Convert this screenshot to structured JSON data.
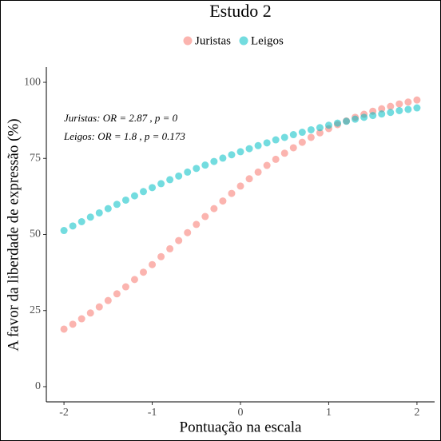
{
  "chart_data": {
    "type": "scatter",
    "title": "Estudo 2",
    "x_label": "Pontuação na escala",
    "y_label": "A favor da liberdade de expressão (%)",
    "annotations": [
      "Juristas: OR = 2.87 , p = 0",
      "Leigos: OR = 1.8 , p = 0.173"
    ],
    "legend_position": "top",
    "xlim": [
      -2.2,
      2.2
    ],
    "xticks": [
      -2,
      -1,
      0,
      1,
      2
    ],
    "ylim": [
      -5,
      105
    ],
    "yticks": [
      0,
      25,
      50,
      75,
      100
    ],
    "x": [
      -2,
      -1.9,
      -1.8,
      -1.7,
      -1.6,
      -1.5,
      -1.4,
      -1.3,
      -1.2,
      -1.1,
      -1,
      -0.9,
      -0.8,
      -0.7,
      -0.6,
      -0.5,
      -0.4,
      -0.3,
      -0.2,
      -0.1,
      0,
      0.1,
      0.2,
      0.3,
      0.4,
      0.5,
      0.6,
      0.7,
      0.8,
      0.9,
      1,
      1.1,
      1.2,
      1.3,
      1.4,
      1.5,
      1.6,
      1.7,
      1.8,
      1.9,
      2
    ],
    "series": [
      {
        "name": "Juristas",
        "color": "#F8766D",
        "values": [
          18.9,
          20.5,
          22.3,
          24.2,
          26.2,
          28.3,
          30.5,
          32.8,
          35.2,
          37.6,
          40.1,
          42.7,
          45.3,
          48.0,
          50.6,
          53.3,
          55.9,
          58.5,
          61.0,
          63.5,
          65.9,
          68.3,
          70.5,
          72.7,
          74.7,
          76.7,
          78.5,
          80.3,
          81.9,
          83.4,
          84.8,
          86.1,
          87.3,
          88.5,
          89.5,
          90.5,
          91.3,
          92.1,
          92.9,
          93.5,
          94.2
        ]
      },
      {
        "name": "Leigos",
        "color": "#00BFC4",
        "values": [
          51.3,
          52.8,
          54.2,
          55.7,
          57.1,
          58.5,
          59.9,
          61.3,
          62.7,
          64.1,
          65.4,
          66.7,
          68.0,
          69.2,
          70.5,
          71.7,
          72.8,
          74.0,
          75.1,
          76.2,
          77.2,
          78.2,
          79.2,
          80.1,
          81.1,
          81.9,
          82.8,
          83.6,
          84.4,
          85.1,
          85.9,
          86.6,
          87.2,
          87.9,
          88.5,
          89.1,
          89.6,
          90.1,
          90.7,
          91.1,
          91.6
        ]
      }
    ]
  }
}
